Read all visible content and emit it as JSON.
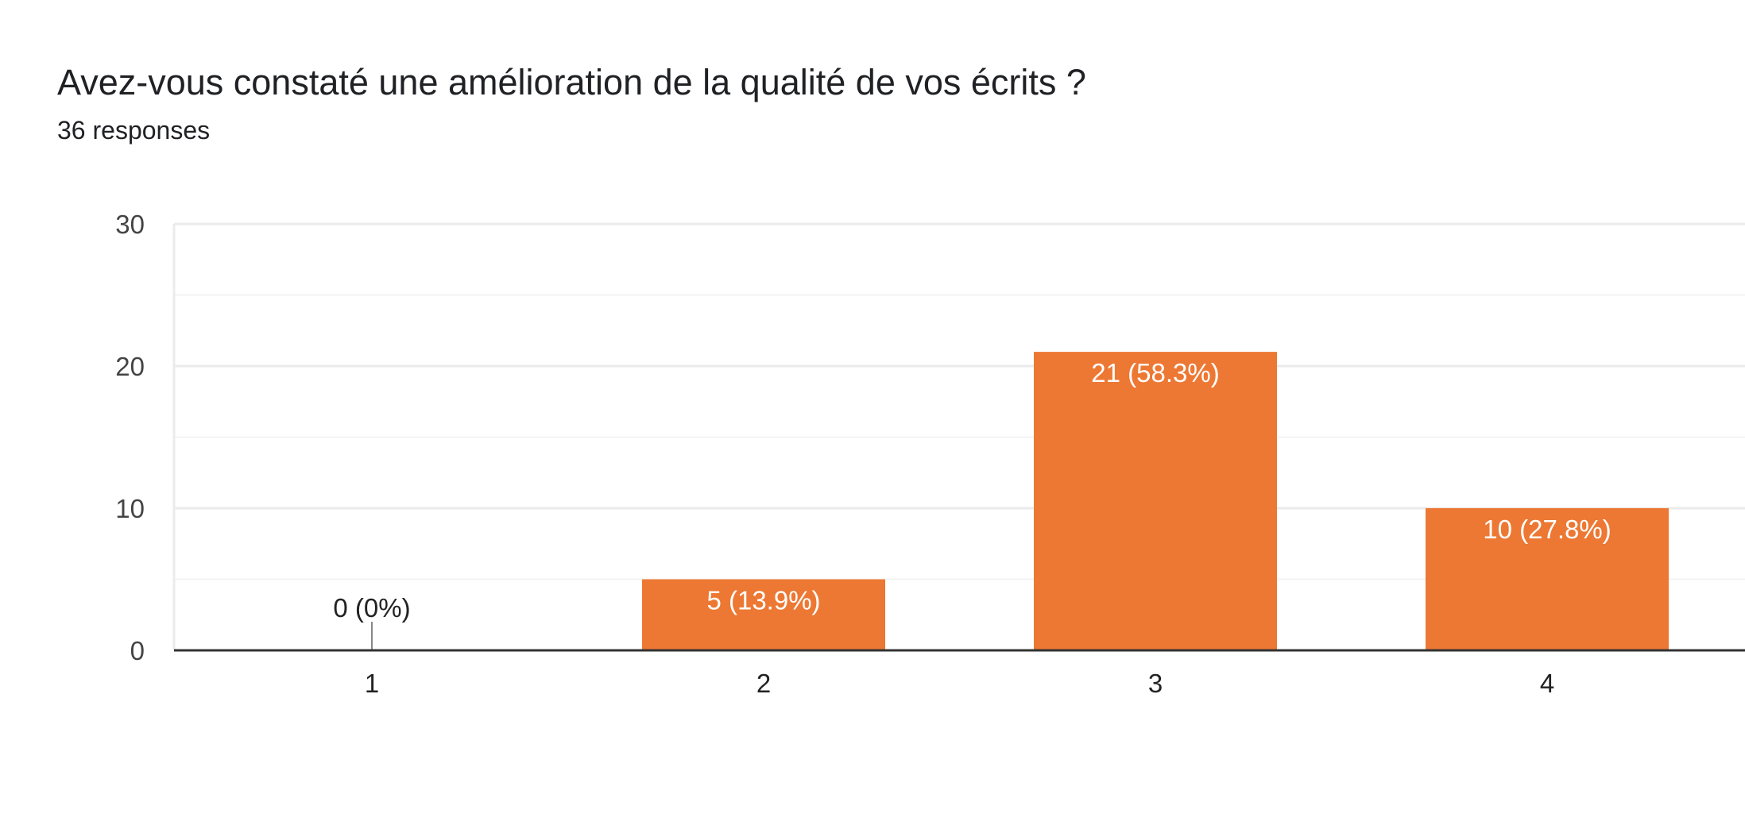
{
  "header": {
    "title": "Avez-vous constaté une amélioration de la qualité de vos écrits ?",
    "subtitle": "36 responses"
  },
  "chart_data": {
    "type": "bar",
    "categories": [
      "1",
      "2",
      "3",
      "4"
    ],
    "values": [
      0,
      5,
      21,
      10
    ],
    "data_labels": [
      "0 (0%)",
      "5 (13.9%)",
      "21 (58.3%)",
      "10 (27.8%)"
    ],
    "ylim": [
      0,
      30
    ],
    "yticks": [
      0,
      10,
      20,
      30
    ],
    "grid": true,
    "legend": "none",
    "colors": {
      "bar": "#ed7833",
      "gridline": "#ebebeb",
      "minor_gridline": "#f3f3f3",
      "baseline": "#333333",
      "label_inside": "#ffffff",
      "label_outside": "#222222"
    }
  }
}
